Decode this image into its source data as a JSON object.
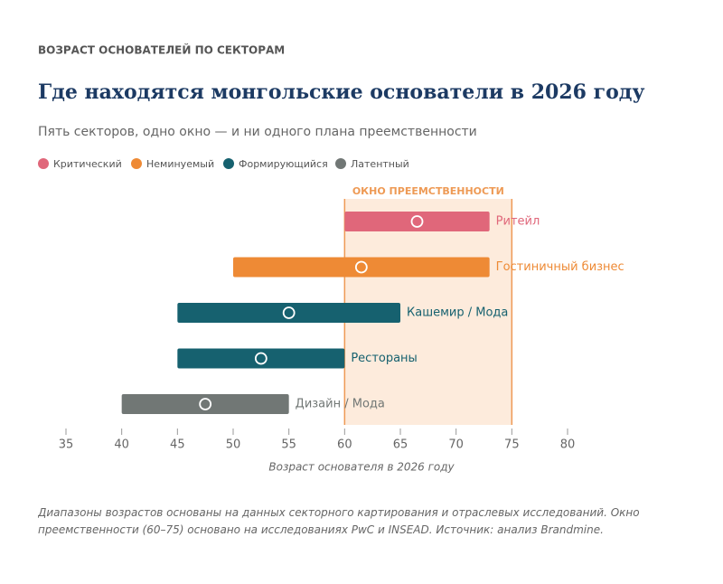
{
  "chart_data": {
    "type": "range",
    "kicker": "ВОЗРАСТ ОСНОВАТЕЛЕЙ ПО СЕКТОРАМ",
    "title": "Где находятся монгольские основатели в 2026 году",
    "subtitle": "Пять секторов, одно окно — и ни одного плана преемственности",
    "legend": [
      {
        "name": "Критический",
        "color": "#e0677a"
      },
      {
        "name": "Неминуемый",
        "color": "#ee8a35"
      },
      {
        "name": "Формирующийся",
        "color": "#16616f"
      },
      {
        "name": "Латентный",
        "color": "#717775"
      }
    ],
    "window": {
      "label": "ОКНО ПРЕЕМСТВЕННОСТИ",
      "start": 60,
      "end": 75,
      "color": "#fdebdc",
      "edge_color": "#ee9a55"
    },
    "items": [
      {
        "label": "Ритейл",
        "start": 60,
        "end": 73,
        "marker": 66.5,
        "color": "#e0677a"
      },
      {
        "label": "Гостиничный бизнес",
        "start": 50,
        "end": 73,
        "marker": 61.5,
        "color": "#ee8a35"
      },
      {
        "label": "Кашемир / Мода",
        "start": 45,
        "end": 65,
        "marker": 55,
        "color": "#16616f"
      },
      {
        "label": "Рестораны",
        "start": 45,
        "end": 60,
        "marker": 52.5,
        "color": "#16616f"
      },
      {
        "label": "Дизайн / Мода",
        "start": 40,
        "end": 55,
        "marker": 47.5,
        "color": "#717775"
      }
    ],
    "xlim": [
      35,
      80
    ],
    "xticks": [
      35,
      40,
      45,
      50,
      55,
      60,
      65,
      70,
      75,
      80
    ],
    "xlabel": "Возраст основателя в 2026 году",
    "footnote": "Диапазоны возрастов основаны на данных секторного картирования и отраслевых исследований. Окно преемственности (60–75) основано на исследованиях PwC и INSEAD. Источник: анализ Brandmine."
  }
}
